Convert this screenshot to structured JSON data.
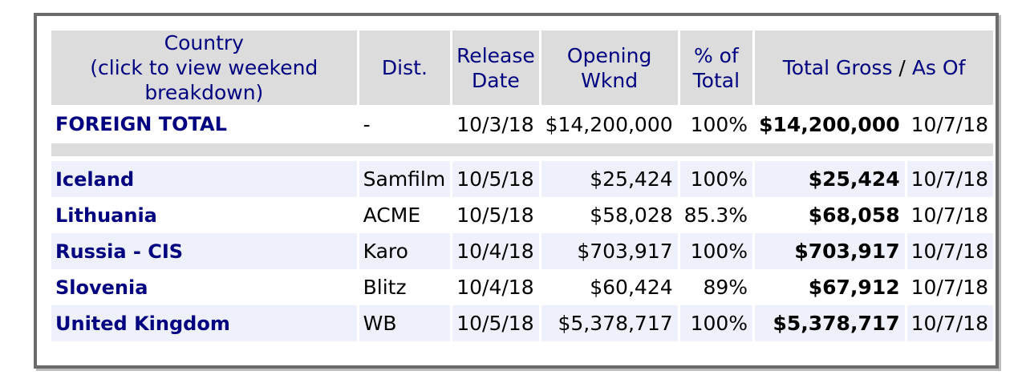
{
  "headers": {
    "country_line1": "Country",
    "country_line2": "(click to view weekend breakdown)",
    "dist": "Dist.",
    "release_line1": "Release",
    "release_line2": "Date",
    "opening_line1": "Opening",
    "opening_line2": "Wknd",
    "pct_line1": "% of",
    "pct_line2": "Total",
    "total_gross": "Total Gross",
    "slash": "/",
    "as_of": "As Of"
  },
  "foreign_total": {
    "country": "FOREIGN TOTAL",
    "dist": "-",
    "release": "10/3/18",
    "opening": "$14,200,000",
    "pct": "100%",
    "gross": "$14,200,000",
    "as_of": "10/7/18"
  },
  "rows": [
    {
      "country": "Iceland",
      "dist": "Samfilm",
      "release": "10/5/18",
      "opening": "$25,424",
      "pct": "100%",
      "gross": "$25,424",
      "as_of": "10/7/18"
    },
    {
      "country": "Lithuania",
      "dist": "ACME",
      "release": "10/5/18",
      "opening": "$58,028",
      "pct": "85.3%",
      "gross": "$68,058",
      "as_of": "10/7/18"
    },
    {
      "country": "Russia - CIS",
      "dist": "Karo",
      "release": "10/4/18",
      "opening": "$703,917",
      "pct": "100%",
      "gross": "$703,917",
      "as_of": "10/7/18"
    },
    {
      "country": "Slovenia",
      "dist": "Blitz",
      "release": "10/4/18",
      "opening": "$60,424",
      "pct": "89%",
      "gross": "$67,912",
      "as_of": "10/7/18"
    },
    {
      "country": "United Kingdom",
      "dist": "WB",
      "release": "10/5/18",
      "opening": "$5,378,717",
      "pct": "100%",
      "gross": "$5,378,717",
      "as_of": "10/7/18"
    }
  ]
}
